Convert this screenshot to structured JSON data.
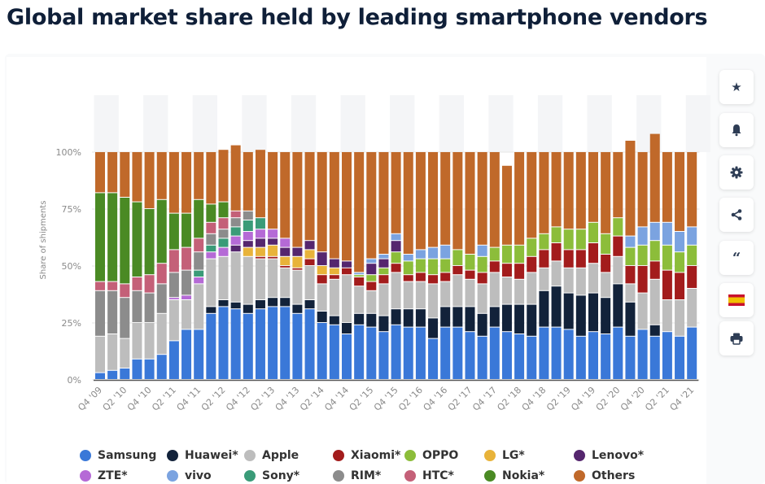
{
  "page": {
    "title": "Global market share held by leading smartphone vendors"
  },
  "sidebar": {
    "buttons": [
      {
        "name": "favorite-button",
        "icon": "star-icon",
        "glyph": "★"
      },
      {
        "name": "notification-button",
        "icon": "bell-icon",
        "glyph": "🔔"
      },
      {
        "name": "settings-button",
        "icon": "gear-icon",
        "glyph": "⚙"
      },
      {
        "name": "share-button",
        "icon": "share-icon",
        "glyph": "share"
      },
      {
        "name": "cite-button",
        "icon": "quote-icon",
        "glyph": "❝"
      },
      {
        "name": "language-button",
        "icon": "spain-flag-icon",
        "glyph": "flag"
      },
      {
        "name": "print-button",
        "icon": "printer-icon",
        "glyph": "print"
      }
    ]
  },
  "chart_data": {
    "type": "bar",
    "stacked": true,
    "title": "Global market share held by leading smartphone vendors",
    "xlabel": "",
    "ylabel": "Share of shipments",
    "ylim": [
      0,
      100
    ],
    "yticks": [
      "0%",
      "25%",
      "50%",
      "75%",
      "100%"
    ],
    "grid": true,
    "legend_position": "bottom",
    "categories": [
      "Q4 '09",
      "Q1 '10",
      "Q2 '10",
      "Q3 '10",
      "Q4 '10",
      "Q1 '11",
      "Q2 '11",
      "Q3 '11",
      "Q4 '11",
      "Q1 '12",
      "Q2 '12",
      "Q3 '12",
      "Q4 '12",
      "Q1 '13",
      "Q2 '13",
      "Q3 '13",
      "Q4 '13",
      "Q1 '14",
      "Q2 '14",
      "Q3 '14",
      "Q4 '14",
      "Q1 '15",
      "Q2 '15",
      "Q3 '15",
      "Q4 '15",
      "Q1 '16",
      "Q2 '16",
      "Q3 '16",
      "Q4 '16",
      "Q1 '17",
      "Q2 '17",
      "Q3 '17",
      "Q4 '17",
      "Q1 '18",
      "Q2 '18",
      "Q3 '18",
      "Q4 '18",
      "Q1 '19",
      "Q2 '19",
      "Q3 '19",
      "Q4 '19",
      "Q1 '20",
      "Q2 '20",
      "Q3 '20",
      "Q4 '20",
      "Q1 '21",
      "Q2 '21",
      "Q3 '21",
      "Q4 '21"
    ],
    "tick_labels": [
      "Q4 '09",
      "Q2 '10",
      "Q4 '10",
      "Q2 '11",
      "Q4 '11",
      "Q2 '12",
      "Q4 '12",
      "Q2 '13",
      "Q4 '13",
      "Q2 '14",
      "Q4 '14",
      "Q2 '15",
      "Q4 '15",
      "Q2 '16",
      "Q4 '16",
      "Q2 '17",
      "Q4 '17",
      "Q2 '18",
      "Q4 '18",
      "Q2 '19",
      "Q4 '19",
      "Q2 '20",
      "Q4 '20",
      "Q2 '21",
      "Q4 '21"
    ],
    "series": [
      {
        "name": "Samsung",
        "color": "#3a78d8",
        "values": [
          3,
          4,
          5,
          9,
          9,
          11,
          17,
          22,
          22,
          29,
          32,
          31,
          29,
          31,
          32,
          32,
          29,
          31,
          25,
          24,
          20,
          24,
          23,
          21,
          24,
          23,
          23,
          18,
          23,
          23,
          21,
          19,
          23,
          21,
          20,
          19,
          23,
          23,
          22,
          19,
          21,
          20,
          23,
          19,
          22,
          19,
          21,
          19,
          23
        ]
      },
      {
        "name": "Huawei*",
        "color": "#12223a",
        "values": [
          0,
          0,
          0,
          0,
          0,
          0,
          0,
          0,
          0,
          3,
          3,
          3,
          4,
          4,
          4,
          4,
          4,
          4,
          5,
          4,
          5,
          5,
          6,
          7,
          7,
          8,
          8,
          9,
          9,
          9,
          11,
          10,
          9,
          12,
          13,
          14,
          16,
          18,
          16,
          18,
          17,
          16,
          19,
          15,
          0,
          5,
          0,
          0,
          0
        ]
      },
      {
        "name": "Apple",
        "color": "#bdbdbd",
        "values": [
          16,
          16,
          13,
          16,
          16,
          18,
          18,
          13,
          20,
          21,
          19,
          22,
          21,
          18,
          17,
          13,
          15,
          15,
          12,
          16,
          21,
          12,
          10,
          14,
          16,
          12,
          12,
          15,
          11,
          14,
          12,
          13,
          15,
          12,
          11,
          14,
          10,
          11,
          11,
          12,
          13,
          11,
          12,
          8,
          16,
          20,
          14,
          16,
          17
        ]
      },
      {
        "name": "Xiaomi*",
        "color": "#a31c1c",
        "values": [
          0,
          0,
          0,
          0,
          0,
          0,
          0,
          0,
          0,
          0,
          0,
          0,
          0,
          1,
          1,
          1,
          1,
          3,
          4,
          2,
          3,
          4,
          4,
          4,
          4,
          3,
          4,
          4,
          4,
          4,
          4,
          5,
          5,
          6,
          7,
          7,
          8,
          8,
          8,
          8,
          9,
          8,
          9,
          8,
          12,
          8,
          13,
          12,
          10
        ]
      },
      {
        "name": "OPPO",
        "color": "#8cbd3a",
        "values": [
          0,
          0,
          0,
          0,
          0,
          0,
          0,
          0,
          0,
          0,
          0,
          0,
          0,
          0,
          0,
          0,
          0,
          0,
          0,
          0,
          0,
          1,
          3,
          3,
          5,
          6,
          6,
          7,
          6,
          7,
          7,
          7,
          6,
          8,
          8,
          8,
          7,
          7,
          9,
          9,
          9,
          9,
          8,
          8,
          9,
          9,
          11,
          9,
          9
        ]
      },
      {
        "name": "LG*",
        "color": "#e8b33a",
        "values": [
          0,
          0,
          0,
          0,
          0,
          0,
          0,
          0,
          0,
          0,
          0,
          0,
          4,
          4,
          5,
          4,
          5,
          4,
          4,
          3,
          0,
          0,
          0,
          0,
          0,
          0,
          0,
          0,
          0,
          0,
          0,
          0,
          0,
          0,
          0,
          0,
          0,
          0,
          0,
          0,
          0,
          0,
          0,
          0,
          0,
          0,
          0,
          0,
          0
        ]
      },
      {
        "name": "Lenovo*",
        "color": "#55266e",
        "values": [
          0,
          0,
          0,
          0,
          0,
          0,
          0,
          0,
          0,
          0,
          0,
          3,
          3,
          4,
          3,
          4,
          4,
          4,
          6,
          4,
          3,
          0,
          5,
          4,
          5,
          0,
          0,
          0,
          0,
          0,
          0,
          0,
          0,
          0,
          0,
          0,
          0,
          0,
          0,
          0,
          0,
          0,
          0,
          0,
          0,
          0,
          0,
          0,
          0
        ]
      },
      {
        "name": "ZTE*",
        "color": "#b56ad6",
        "values": [
          0,
          0,
          0,
          0,
          0,
          0,
          1,
          2,
          3,
          3,
          4,
          4,
          4,
          4,
          4,
          4,
          0,
          0,
          0,
          0,
          0,
          0,
          0,
          0,
          0,
          0,
          0,
          0,
          0,
          0,
          0,
          0,
          0,
          0,
          0,
          0,
          0,
          0,
          0,
          0,
          0,
          0,
          0,
          0,
          0,
          0,
          0,
          0,
          0
        ]
      },
      {
        "name": "vivo",
        "color": "#7ba3e0",
        "values": [
          0,
          0,
          0,
          0,
          0,
          0,
          0,
          0,
          0,
          0,
          0,
          0,
          0,
          0,
          0,
          0,
          0,
          0,
          0,
          0,
          0,
          1,
          2,
          2,
          3,
          3,
          4,
          5,
          6,
          0,
          0,
          5,
          0,
          0,
          0,
          0,
          0,
          0,
          0,
          0,
          0,
          0,
          0,
          5,
          8,
          8,
          10,
          9,
          8
        ]
      },
      {
        "name": "Sony*",
        "color": "#3a9b78",
        "values": [
          0,
          0,
          0,
          0,
          0,
          0,
          0,
          0,
          3,
          3,
          4,
          4,
          5,
          5,
          0,
          0,
          0,
          0,
          0,
          0,
          0,
          0,
          0,
          0,
          0,
          0,
          0,
          0,
          0,
          0,
          0,
          0,
          0,
          0,
          0,
          0,
          0,
          0,
          0,
          0,
          0,
          0,
          0,
          0,
          0,
          0,
          0,
          0,
          0
        ]
      },
      {
        "name": "RIM*",
        "color": "#8c8c8c",
        "values": [
          20,
          19,
          18,
          14,
          13,
          13,
          11,
          11,
          8,
          5,
          4,
          4,
          4,
          0,
          0,
          0,
          0,
          0,
          0,
          0,
          0,
          0,
          0,
          0,
          0,
          0,
          0,
          0,
          0,
          0,
          0,
          0,
          0,
          0,
          0,
          0,
          0,
          0,
          0,
          0,
          0,
          0,
          0,
          0,
          0,
          0,
          0,
          0,
          0
        ]
      },
      {
        "name": "HTC*",
        "color": "#c46078",
        "values": [
          4,
          4,
          6,
          6,
          8,
          9,
          10,
          10,
          6,
          5,
          5,
          3,
          0,
          0,
          0,
          0,
          0,
          0,
          0,
          0,
          0,
          0,
          0,
          0,
          0,
          0,
          0,
          0,
          0,
          0,
          0,
          0,
          0,
          0,
          0,
          0,
          0,
          0,
          0,
          0,
          0,
          0,
          0,
          0,
          0,
          0,
          0,
          0,
          0
        ]
      },
      {
        "name": "Nokia*",
        "color": "#4a8a24",
        "values": [
          39,
          39,
          38,
          33,
          29,
          28,
          16,
          15,
          17,
          8,
          7,
          0,
          0,
          0,
          0,
          0,
          0,
          0,
          0,
          0,
          0,
          0,
          0,
          0,
          0,
          0,
          0,
          0,
          0,
          0,
          0,
          0,
          0,
          0,
          0,
          0,
          0,
          0,
          0,
          0,
          0,
          0,
          0,
          0,
          0,
          0,
          0,
          0,
          0
        ]
      },
      {
        "name": "Others",
        "color": "#c0692a",
        "values": [
          18,
          18,
          20,
          22,
          25,
          21,
          27,
          27,
          21,
          23,
          23,
          29,
          26,
          30,
          34,
          38,
          42,
          39,
          44,
          47,
          48,
          53,
          47,
          45,
          36,
          45,
          43,
          42,
          41,
          43,
          45,
          41,
          42,
          35,
          41,
          38,
          36,
          33,
          34,
          34,
          31,
          36,
          29,
          42,
          33,
          39,
          31,
          35,
          33
        ]
      }
    ]
  }
}
